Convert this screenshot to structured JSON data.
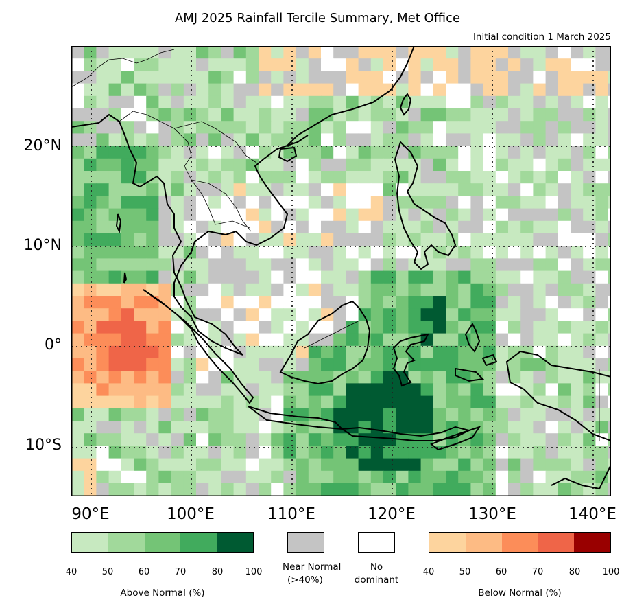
{
  "title": "AMJ 2025 Rainfall Tercile Summary, Met Office",
  "subtitle": "Initial condition 1 March 2025",
  "axes": {
    "lat_labels": [
      "20°N",
      "10°N",
      "0°",
      "10°S"
    ],
    "lon_labels": [
      "90°E",
      "100°E",
      "110°E",
      "120°E",
      "130°E",
      "140°E"
    ]
  },
  "colors": {
    "above": [
      "#c7e9c0",
      "#a1d99b",
      "#74c476",
      "#41ab5d",
      "#005a32"
    ],
    "near_normal": "#c4c4c4",
    "no_dominant": "#ffffff",
    "below": [
      "#fdd49e",
      "#fdbb84",
      "#fc8d59",
      "#ef6548",
      "#990000"
    ]
  },
  "legend": {
    "above": {
      "label": "Above Normal (%)",
      "ticks": [
        "40",
        "50",
        "60",
        "70",
        "80",
        "100"
      ]
    },
    "near": {
      "line1": "Near Normal",
      "line2": "(>40%)"
    },
    "none": {
      "line1": "No",
      "line2": "dominant"
    },
    "below": {
      "label": "Below Normal (%)",
      "ticks": [
        "40",
        "50",
        "60",
        "70",
        "80",
        "100"
      ]
    }
  }
}
